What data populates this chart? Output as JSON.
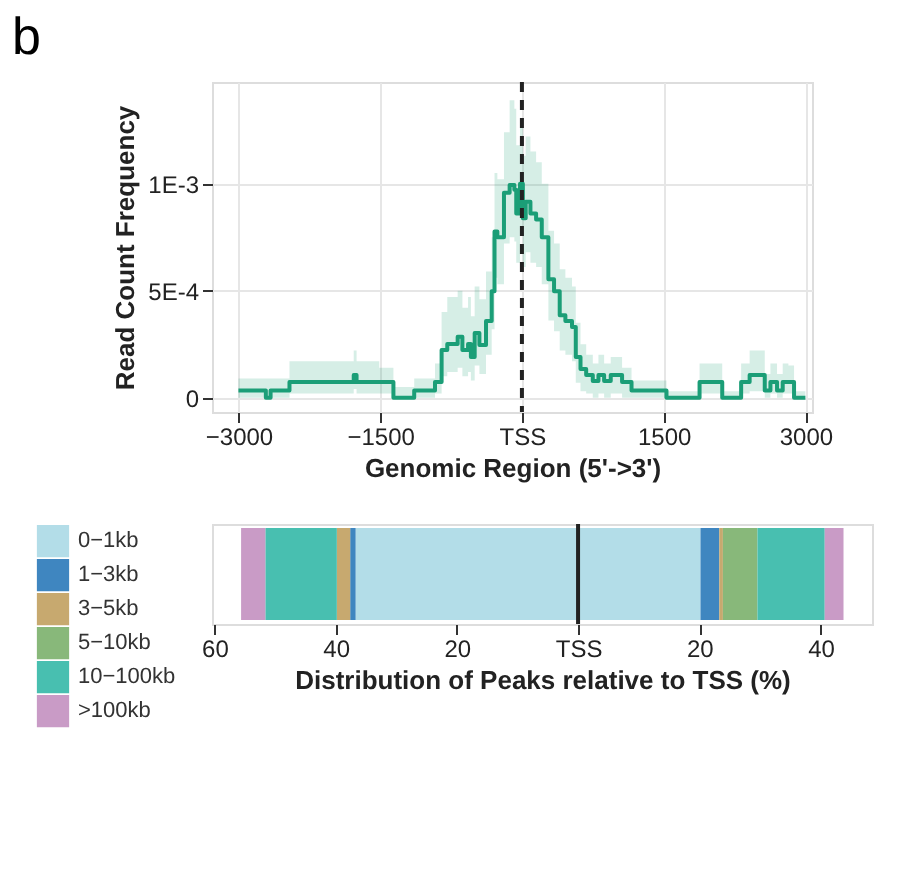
{
  "chart_data": [
    {
      "type": "step",
      "title": "b",
      "xlabel": "Genomic Region (5'->3')",
      "ylabel": "Read Count Frequency",
      "xlim": [
        -3280,
        3070
      ],
      "ylim": [
        -6.7e-05,
        0.001475
      ],
      "xticks": [
        {
          "value": -3000,
          "label": "−3000"
        },
        {
          "value": -1500,
          "label": "−1500"
        },
        {
          "value": 0,
          "label": "TSS"
        },
        1500,
        3000
      ],
      "yticks": [
        0,
        {
          "value": 0.0005,
          "label": "5E-4"
        },
        {
          "value": 0.001,
          "label": "1E-3"
        }
      ],
      "grid": true,
      "legend": false,
      "line_style": "solid",
      "marker": "none",
      "ref_lines": [
        {
          "axis": "x",
          "value": 0,
          "label": null,
          "color": "#222222",
          "line_style": "dashed"
        }
      ],
      "series": [
        {
          "color": "#1b9e77",
          "x": [
            -3000,
            -2740,
            -2710,
            -2660,
            -2460,
            -1800,
            -1780,
            -1750,
            -1510,
            -1360,
            -1170,
            -1140,
            -1020,
            -920,
            -850,
            -790,
            -730,
            -680,
            -630,
            -570,
            -540,
            -500,
            -450,
            -380,
            -320,
            -290,
            -260,
            -190,
            -130,
            -80,
            -60,
            -20,
            10,
            40,
            90,
            150,
            210,
            280,
            340,
            400,
            460,
            530,
            570,
            620,
            680,
            750,
            810,
            870,
            940,
            1060,
            1160,
            1530,
            1820,
            1880,
            2070,
            2120,
            2260,
            2320,
            2410,
            2510,
            2570,
            2630,
            2700,
            2760,
            2820,
            2880,
            3000
          ],
          "values": [
            3.4e-05,
            3.4e-05,
            0,
            3.4e-05,
            7.3e-05,
            7.3e-05,
            0.000106,
            7.3e-05,
            7.3e-05,
            0,
            0,
            3.4e-05,
            3.4e-05,
            7.3e-05,
            0.000223,
            0.000251,
            0.000251,
            0.000285,
            0.000223,
            0.000251,
            0.00019,
            0.000302,
            0.000246,
            0.000358,
            0.000497,
            0.000777,
            0.000749,
            0.000958,
            0.000994,
            0.000972,
            0.00086,
            0.001,
            0.000838,
            0.000916,
            0.00086,
            0.000832,
            0.000749,
            0.000553,
            0.000497,
            0.000385,
            0.000358,
            0.00033,
            0.00019,
            0.000134,
            0.000106,
            7.8e-05,
            0.000106,
            7.8e-05,
            0.000106,
            7.3e-05,
            3.4e-05,
            0,
            0,
            7.3e-05,
            7.3e-05,
            0,
            0,
            7.3e-05,
            0.000106,
            0.000106,
            3.4e-05,
            7.3e-05,
            3.4e-05,
            7.3e-05,
            7.3e-05,
            0,
            0
          ],
          "upper": [
            9e-05,
            9e-05,
            9e-05,
            9e-05,
            0.00017,
            0.00017,
            0.00022,
            0.00017,
            0.00014,
            5e-05,
            5e-05,
            9e-05,
            9e-05,
            0.00016,
            0.0004,
            0.00047,
            0.00047,
            0.0005,
            0.00042,
            0.00047,
            0.00038,
            0.00052,
            0.00046,
            0.00059,
            0.00075,
            0.00105,
            0.00102,
            0.00124,
            0.00139,
            0.00135,
            0.00118,
            0.00129,
            0.00113,
            0.00122,
            0.00115,
            0.0011,
            0.001,
            0.00078,
            0.00072,
            0.0006,
            0.00056,
            0.00052,
            0.00035,
            0.00025,
            0.0002,
            0.00016,
            0.0002,
            0.00016,
            0.00019,
            0.00014,
            8e-05,
            3e-05,
            3e-05,
            0.00016,
            0.00016,
            3e-05,
            3e-05,
            0.00016,
            0.00022,
            0.00022,
            0.00011,
            0.00016,
            0.00011,
            0.00016,
            0.00015,
            3e-05,
            3e-05
          ],
          "lower": [
            0,
            0,
            0,
            0,
            2e-05,
            2e-05,
            4e-05,
            2e-05,
            2e-05,
            0,
            0,
            0,
            0,
            2e-05,
            0.0001,
            0.00012,
            0.00012,
            0.00014,
            0.0001,
            0.00012,
            8e-05,
            0.00015,
            0.00011,
            0.0002,
            0.00032,
            0.00056,
            0.00053,
            0.00072,
            0.00075,
            0.00073,
            0.00063,
            0.00076,
            0.00061,
            0.00068,
            0.00063,
            0.00061,
            0.00053,
            0.00036,
            0.00031,
            0.00022,
            0.0002,
            0.00017,
            7e-05,
            3e-05,
            2e-05,
            0,
            2e-05,
            0,
            2e-05,
            0,
            0,
            0,
            0,
            2e-05,
            2e-05,
            0,
            0,
            2e-05,
            3e-05,
            3e-05,
            0,
            2e-05,
            0,
            2e-05,
            2e-05,
            0,
            0
          ]
        }
      ]
    },
    {
      "type": "bar",
      "orientation": "horizontal",
      "stacked": true,
      "xlabel": "Distribution of Peaks relative to TSS (%)",
      "categories": [
        null
      ],
      "xlim": [
        -60.4,
        48.5
      ],
      "xticks": [
        {
          "value": -60,
          "label": "60"
        },
        {
          "value": -40,
          "label": "40"
        },
        {
          "value": -20,
          "label": "20"
        },
        {
          "value": 0,
          "label": "TSS"
        },
        20,
        40
      ],
      "tick_labels": "x",
      "grid": false,
      "legend": "left",
      "ref_lines": [
        {
          "axis": "x",
          "value": 0,
          "label": null,
          "color": "#222222",
          "line_style": "solid"
        }
      ],
      "series": [
        {
          "name": "0−1kb",
          "color": "#b3dde8",
          "values": [
            -36.7
          ]
        },
        {
          "name": "1−3kb",
          "color": "#3f86c0",
          "values": [
            -0.9
          ]
        },
        {
          "name": "3−5kb",
          "color": "#c7a96f",
          "values": [
            -2.2
          ]
        },
        {
          "name": "5−10kb",
          "color": "#88b87a",
          "values": [
            0
          ]
        },
        {
          "name": "10−100kb",
          "color": "#48bfb0",
          "values": [
            -11.8
          ]
        },
        {
          "name": ">100kb",
          "color": "#c99bc6",
          "values": [
            -4.0
          ]
        },
        {
          "color": "#b3dde8",
          "values": [
            20.2
          ]
        },
        {
          "color": "#3f86c0",
          "values": [
            3.1
          ]
        },
        {
          "color": "#c7a96f",
          "values": [
            0.6
          ]
        },
        {
          "color": "#88b87a",
          "values": [
            5.7
          ]
        },
        {
          "color": "#48bfb0",
          "values": [
            11.1
          ]
        },
        {
          "color": "#c99bc6",
          "values": [
            3.1
          ]
        }
      ]
    }
  ]
}
